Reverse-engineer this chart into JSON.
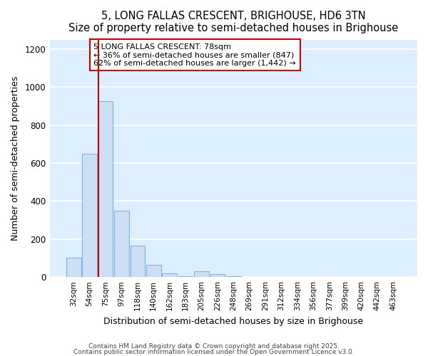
{
  "title1": "5, LONG FALLAS CRESCENT, BRIGHOUSE, HD6 3TN",
  "title2": "Size of property relative to semi-detached houses in Brighouse",
  "xlabel": "Distribution of semi-detached houses by size in Brighouse",
  "ylabel": "Number of semi-detached properties",
  "bar_color": "#ccdff5",
  "bar_edge_color": "#7fb3e0",
  "bg_color": "#ddeeff",
  "grid_color": "#ffffff",
  "categories": [
    "32sqm",
    "54sqm",
    "75sqm",
    "97sqm",
    "118sqm",
    "140sqm",
    "162sqm",
    "183sqm",
    "205sqm",
    "226sqm",
    "248sqm",
    "269sqm",
    "291sqm",
    "312sqm",
    "334sqm",
    "356sqm",
    "377sqm",
    "399sqm",
    "420sqm",
    "442sqm",
    "463sqm"
  ],
  "values": [
    100,
    650,
    925,
    350,
    165,
    65,
    20,
    5,
    30,
    15,
    5,
    2,
    1,
    1,
    1,
    1,
    1,
    1,
    1,
    1,
    1
  ],
  "vline_color": "#cc0000",
  "annotation_box_color": "#cc0000",
  "ann_line1": "5 LONG FALLAS CRESCENT: 78sqm",
  "ann_line2": "← 36% of semi-detached houses are smaller (847)",
  "ann_line3": "62% of semi-detached houses are larger (1,442) →",
  "ylim": [
    0,
    1250
  ],
  "yticks": [
    0,
    200,
    400,
    600,
    800,
    1000,
    1200
  ],
  "footnote1": "Contains HM Land Registry data © Crown copyright and database right 2025.",
  "footnote2": "Contains public sector information licensed under the Open Government Licence v3.0."
}
